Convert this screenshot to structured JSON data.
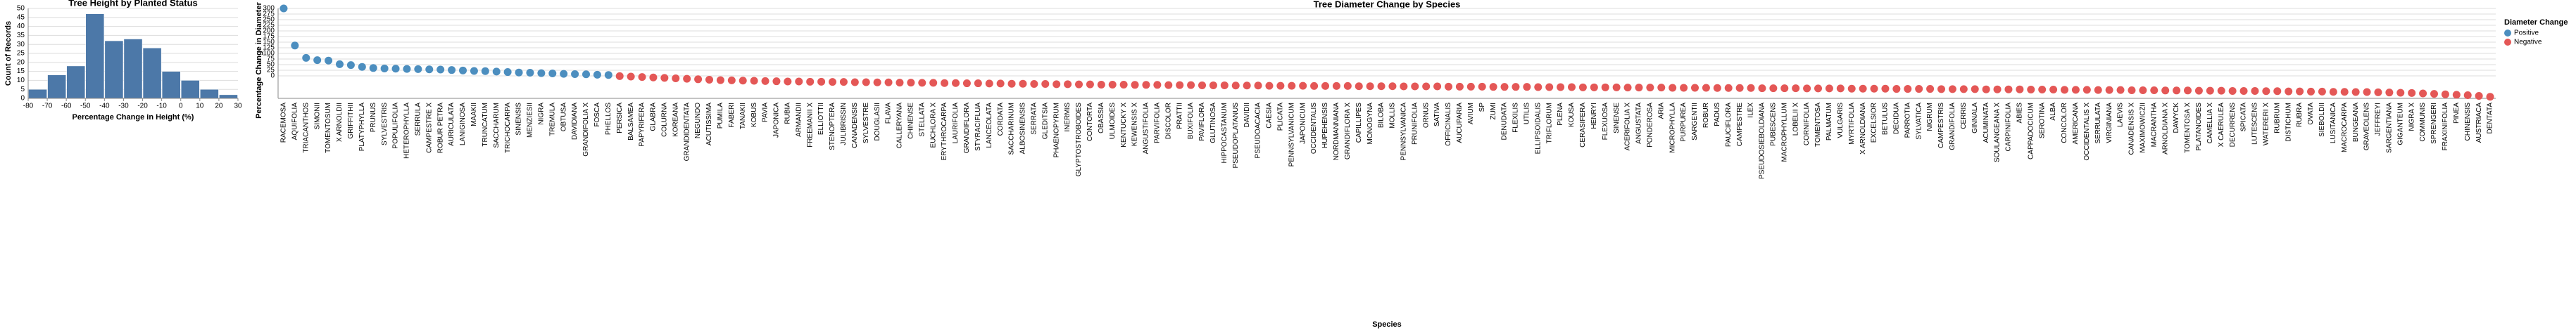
{
  "chart_data": [
    {
      "type": "histogram",
      "title": "Tree Height by Planted Status",
      "x_label": "Percentage Change in Height (%)",
      "y_label": "Count of Records",
      "bins": [
        -80,
        -70,
        -60,
        -50,
        -40,
        -30,
        -20,
        -10,
        0,
        10,
        20,
        30
      ],
      "values": [
        5,
        13,
        18,
        47,
        32,
        33,
        28,
        15,
        10,
        5,
        2
      ],
      "color": "#4c78a8",
      "xlim": [
        -80,
        30
      ],
      "xticks": [
        -80,
        -70,
        -60,
        -50,
        -40,
        -30,
        -20,
        -10,
        0,
        10,
        20,
        30
      ],
      "ylim": [
        0,
        50
      ],
      "yticks": [
        0,
        5,
        10,
        15,
        20,
        25,
        30,
        35,
        40,
        45,
        50
      ],
      "grid": true
    },
    {
      "type": "scatter",
      "title": "Tree Diameter Change by Species",
      "x_label": "Species",
      "y_label": "Percentage Change in Diameter (%)",
      "categories": [
        "RACEMOSA",
        "AQUIFOLIA",
        "TRIACANTHOS",
        "SIMONII",
        "TOMENTOSUM",
        "X ARNOLDII",
        "GRIFFITHII",
        "PLATYPHYLLA",
        "PRUNUS",
        "SYLVESTRIS",
        "POPULIFOLIA",
        "HETEROPHYLLA",
        "SERRULA",
        "CAMPESTRE X",
        "ROBUR PETRA",
        "AURICULATA",
        "LANIGINOSA",
        "MAAKII",
        "TRUNCATUM",
        "SACCHARUM",
        "TRICHOCARPA",
        "SINENSIS",
        "MENZIESII",
        "NIGRA",
        "TREMULA",
        "OBTUSA",
        "DAVIDIANA",
        "GRANDIFOLIA X",
        "FOSCA",
        "PHELLOS",
        "PERSICA",
        "BALSAMEA",
        "PAPYRIFERA",
        "GLABRA",
        "COLURNA",
        "KOREANA",
        "GRANDIDENTATA",
        "NEGUNDO",
        "ACUTISSIMA",
        "PUMILA",
        "FABERI",
        "TANAKII",
        "KOBUS",
        "PAVIA",
        "JAPONICA",
        "RUBIA",
        "ARMANDII",
        "FREEMANII X",
        "ELLIOTTII",
        "STENOPTERA",
        "JULIBRISSIN",
        "CANADENSIS",
        "SYLVESTRE",
        "DOUGLASII",
        "FLAVA",
        "CALLERYANA",
        "CHINENSE",
        "STELLATA",
        "EUCHLORA X",
        "ERYTHROCARPA",
        "LAURIFOLIA",
        "GRANDIFLORA",
        "STYRACIFLUA",
        "LANCEOLATA",
        "CORDATA",
        "SACCHARINUM",
        "ALBOSINENSIS",
        "SERRATA",
        "GLEDITSIA",
        "PHAENOPYRUM",
        "INERMIS",
        "GLYPTOSTROBOIDES",
        "CONTORTA",
        "OBASSIA",
        "ULMOIDES",
        "KENTUCKY X",
        "KEWENSIS X",
        "ANGUSTIFOLIA",
        "PARVIFOLIA",
        "DISCOLOR",
        "PRATTII",
        "BUXIFOLIA",
        "PAVIFLORA",
        "GLUTINOSA",
        "HIPPOCASTANUM",
        "PSEUDOPLATANUS",
        "DAVIDII",
        "PSEUDOACACIA",
        "CAESIA",
        "PLICATA",
        "PENNSYLVANICUM",
        "JAPONICUM",
        "OCCIDENTALIS",
        "HUPEHENSIS",
        "NORDMANNIANA",
        "GRANDIFLORA X",
        "CAPILLIPES",
        "MONOGYNA",
        "BILOBA",
        "MOLLIS",
        "PENNSYLVANICA",
        "PRUNIFOLIA",
        "ORNUS",
        "SATIVA",
        "OFFICINALIS",
        "AUCUPARIA",
        "AVIUM",
        "SP",
        "ZUMI",
        "DENUDATA",
        "FLEXILIS",
        "UTILIS",
        "ELLIPSOIDALIS",
        "TRIFLORUM",
        "PLENA",
        "KOUSA",
        "CERASIFERA",
        "HENRYI",
        "FLEXUOSA",
        "SINENSE",
        "ACERIFOLIA X",
        "ANGUSTATA",
        "PONDEROSA",
        "ARIA",
        "MICROPHYLLA",
        "PURPUREA",
        "SARGENTII",
        "ROBUR",
        "PADUS",
        "PAUCIFLORA",
        "CAMPESTRE",
        "ILEX",
        "PSEUDOSIEBOLDIANA",
        "PUBESCENS",
        "MACROPHYLLUM",
        "LOBELII X",
        "CORNIFOLIA",
        "TOMENTOSA",
        "PALMATUM",
        "VULGARIS",
        "MYRTIFOLIA",
        "X ARNOLDIANA",
        "EXCELSIOR",
        "BETULUS",
        "DECIDUA",
        "PARROTIA",
        "SYLVATICA",
        "NIGRUM",
        "CAMPESTRIS",
        "GRANDIFOLIA",
        "CERRIS",
        "GINNALA",
        "ACUMINATA",
        "SOULANGEANA X",
        "CARPINIFOLIA",
        "ABIES",
        "CAPPADOCICUM",
        "SEROTINA",
        "ALBA",
        "CONCOLOR",
        "AMERICANA",
        "OCCIDENTALIS X",
        "SERRULATA",
        "VIRGINIANA",
        "LAEVIS",
        "CANADENSIS X",
        "MAXIMOWICZII",
        "MACRANTHA",
        "ARNOLDIANA X",
        "DAWYCK",
        "TOMENTOSA X",
        "PLATANOIDES",
        "CAMELLIA X",
        "X CAERULEA",
        "DECURRENS",
        "SPICATA",
        "LUTESCENS",
        "WATERERI X",
        "RUBRUM",
        "DISTICHUM",
        "RUBRA",
        "OVATA",
        "SIEBOLDII",
        "LUSITANICA",
        "MACROCARPA",
        "BUNGEANA",
        "GRAVEOLENS",
        "JEFFREYI",
        "SARGENTIANA",
        "GIGANTEUM",
        "NIGRA X",
        "COMMUNIS",
        "SPRENGERI",
        "FRAXINIFOLIA",
        "PINEA",
        "CHINENSIS",
        "AUSTRIACA",
        "DENTATA"
      ],
      "values": [
        300,
        135,
        80,
        70,
        68,
        52,
        48,
        40,
        35,
        33,
        32,
        31,
        30,
        29,
        28,
        26,
        24,
        22,
        21,
        19,
        17,
        15,
        14,
        12,
        11,
        9,
        8,
        7,
        5,
        4,
        -1,
        -3,
        -5,
        -7,
        -9,
        -11,
        -13,
        -15,
        -17,
        -19,
        -20,
        -21,
        -22,
        -23,
        -24,
        -25,
        -25,
        -26,
        -26,
        -27,
        -27,
        -28,
        -28,
        -29,
        -29,
        -30,
        -30,
        -31,
        -31,
        -32,
        -32,
        -33,
        -33,
        -34,
        -34,
        -35,
        -35,
        -36,
        -36,
        -37,
        -37,
        -38,
        -38,
        -39,
        -39,
        -39,
        -40,
        -40,
        -40,
        -41,
        -41,
        -41,
        -42,
        -42,
        -42,
        -43,
        -43,
        -43,
        -44,
        -44,
        -44,
        -44,
        -45,
        -45,
        -45,
        -45,
        -46,
        -46,
        -46,
        -46,
        -47,
        -47,
        -47,
        -47,
        -48,
        -48,
        -48,
        -48,
        -49,
        -49,
        -49,
        -49,
        -50,
        -50,
        -50,
        -50,
        -51,
        -51,
        -51,
        -51,
        -52,
        -52,
        -52,
        -52,
        -53,
        -53,
        -53,
        -53,
        -54,
        -54,
        -54,
        -54,
        -55,
        -55,
        -55,
        -55,
        -56,
        -56,
        -56,
        -56,
        -57,
        -57,
        -57,
        -57,
        -58,
        -58,
        -58,
        -58,
        -59,
        -59,
        -59,
        -59,
        -60,
        -60,
        -60,
        -60,
        -61,
        -61,
        -61,
        -62,
        -62,
        -62,
        -63,
        -63,
        -63,
        -64,
        -64,
        -64,
        -65,
        -65,
        -65,
        -66,
        -66,
        -66,
        -67,
        -67,
        -67,
        -68,
        -68,
        -69,
        -69,
        -70,
        -70,
        -71,
        -71,
        -72,
        -72,
        -73,
        -74,
        -75,
        -76,
        -78,
        -80,
        -82,
        -84,
        -86,
        -89,
        -93
      ],
      "legend": {
        "title": "Diameter Change",
        "entries": [
          {
            "name": "Positive",
            "color": "#4c8ebf"
          },
          {
            "name": "Negative",
            "color": "#e45756"
          }
        ]
      },
      "ylim": [
        -100,
        300
      ],
      "yticks": [
        0,
        25,
        50,
        75,
        100,
        125,
        150,
        175,
        200,
        225,
        250,
        275,
        300
      ],
      "grid": true
    }
  ]
}
